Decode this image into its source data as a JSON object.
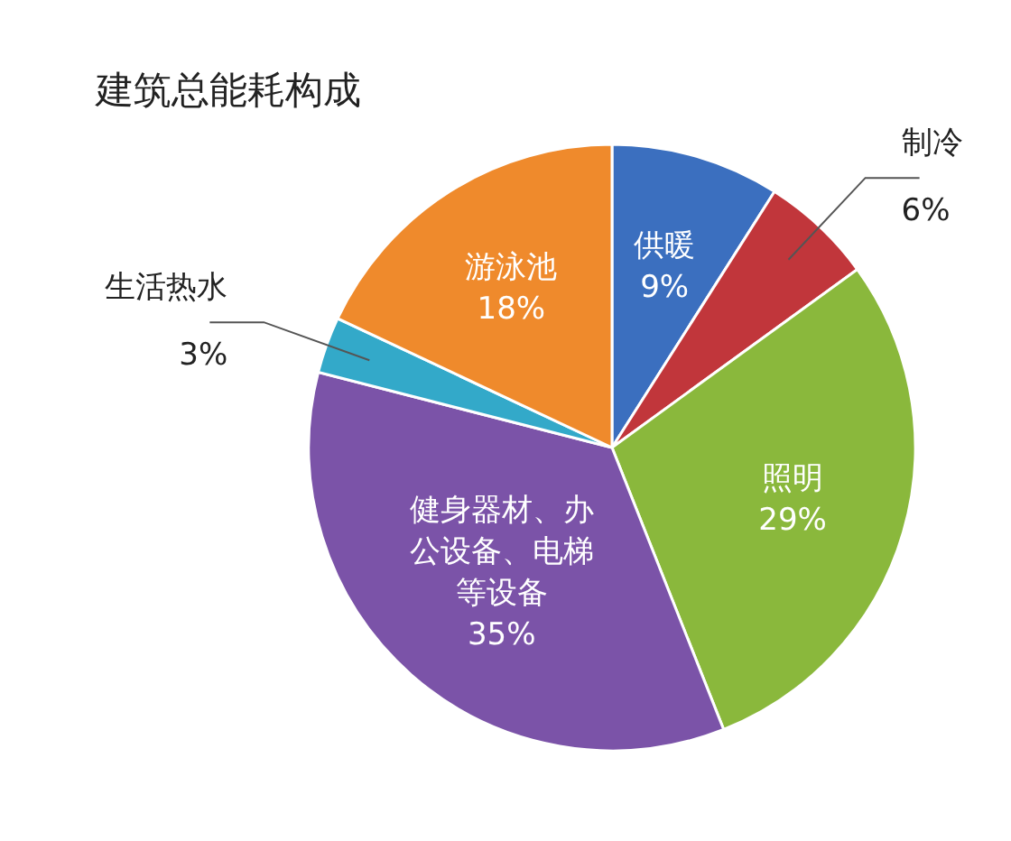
{
  "chart_data": {
    "type": "pie",
    "title": "建筑总能耗构成",
    "categories": [
      "供暖",
      "制冷",
      "照明",
      "健身器材、办公设备、电梯等设备",
      "生活热水",
      "游泳池"
    ],
    "values": [
      9,
      6,
      29,
      35,
      3,
      18
    ],
    "value_labels": [
      "9%",
      "6%",
      "29%",
      "35%",
      "3%",
      "18%"
    ],
    "colors": [
      "#3b6fbf",
      "#c1363b",
      "#8ab83c",
      "#7b53a8",
      "#33a9c9",
      "#ef8a2c"
    ]
  }
}
